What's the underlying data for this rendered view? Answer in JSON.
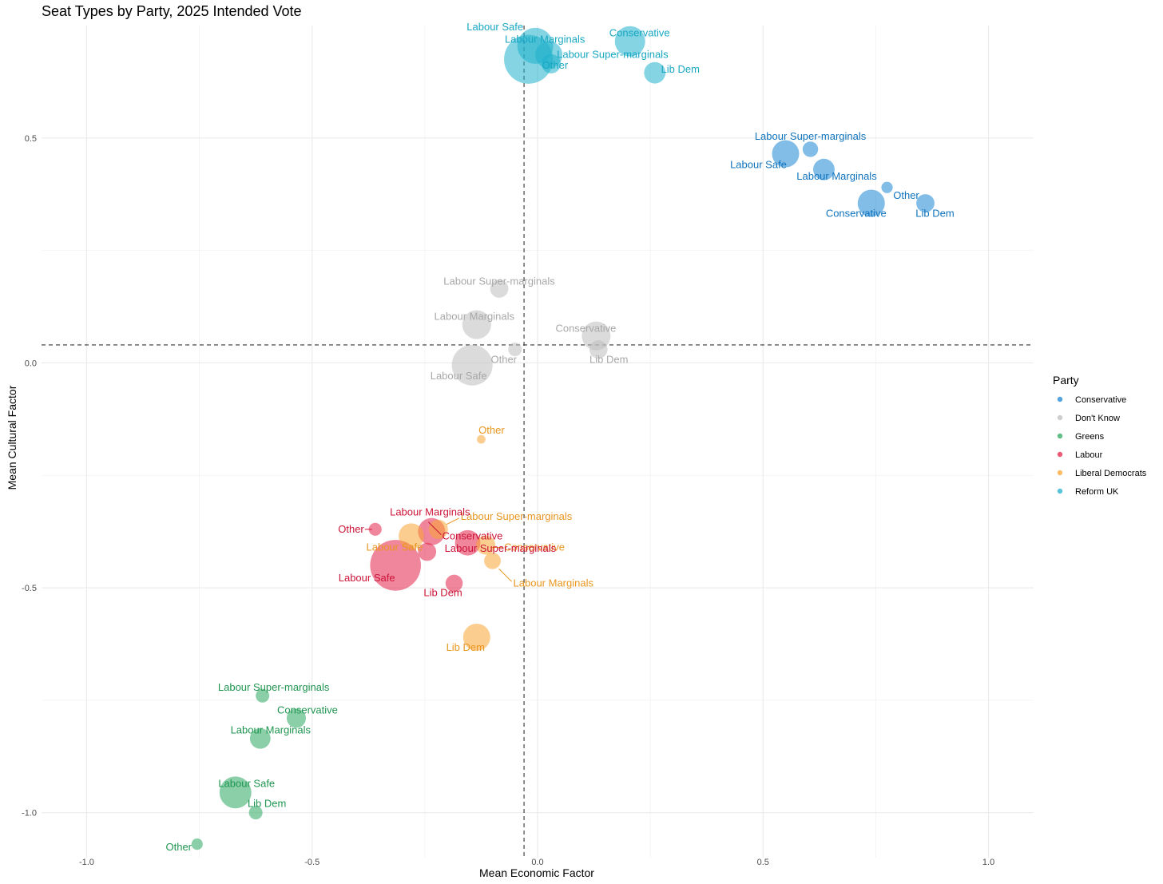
{
  "chart_data": {
    "type": "scatter",
    "title": "Seat Types by Party, 2025 Intended Vote",
    "xlabel": "Mean Economic Factor",
    "ylabel": "Mean Cultural Factor",
    "xlim": [
      -1.1,
      1.1
    ],
    "ylim": [
      -1.1,
      0.75
    ],
    "x_ticks": [
      -1.0,
      -0.5,
      0.0,
      0.5,
      1.0
    ],
    "x_tick_labels": [
      "-1.0",
      "-0.5",
      "0.0",
      "0.5",
      "1.0"
    ],
    "y_ticks": [
      -1.0,
      -0.5,
      0.0,
      0.5
    ],
    "y_tick_labels": [
      "-1.0",
      "-0.5",
      "0.0",
      "0.5"
    ],
    "reference_lines": {
      "x": -0.03,
      "y": 0.04
    },
    "grid": true,
    "legend": {
      "title": "Party",
      "position": "right",
      "entries": [
        {
          "name": "Conservative",
          "color": "#1c86d6"
        },
        {
          "name": "Don't Know",
          "color": "#bdbdbd"
        },
        {
          "name": "Greens",
          "color": "#2ca862"
        },
        {
          "name": "Labour",
          "color": "#e4234a"
        },
        {
          "name": "Liberal Democrats",
          "color": "#f8a534"
        },
        {
          "name": "Reform UK",
          "color": "#1fb0cc"
        }
      ]
    },
    "label_colors": {
      "Conservative": "#0f73bd",
      "Don't Know": "#a8a8a8",
      "Greens": "#1f9550",
      "Labour": "#cc1438",
      "Liberal Democrats": "#e8961f",
      "Reform UK": "#17a7c2"
    },
    "series": [
      {
        "name": "Reform UK",
        "points": [
          {
            "label": "Labour Safe",
            "x": -0.02,
            "y": 0.675,
            "size": 13
          },
          {
            "label": "Labour Marginals",
            "x": -0.005,
            "y": 0.705,
            "size": 7
          },
          {
            "label": "Labour Super-marginals",
            "x": 0.025,
            "y": 0.685,
            "size": 4
          },
          {
            "label": "Other",
            "x": 0.03,
            "y": 0.665,
            "size": 2
          },
          {
            "label": "Conservative",
            "x": 0.205,
            "y": 0.715,
            "size": 5
          },
          {
            "label": "Lib Dem",
            "x": 0.26,
            "y": 0.645,
            "size": 2.5
          }
        ]
      },
      {
        "name": "Conservative",
        "points": [
          {
            "label": "Labour Super-marginals",
            "x": 0.605,
            "y": 0.475,
            "size": 1.3
          },
          {
            "label": "Labour Safe",
            "x": 0.55,
            "y": 0.465,
            "size": 4
          },
          {
            "label": "Labour Marginals",
            "x": 0.635,
            "y": 0.43,
            "size": 2.5
          },
          {
            "label": "Other",
            "x": 0.775,
            "y": 0.39,
            "size": 0.7
          },
          {
            "label": "Conservative",
            "x": 0.74,
            "y": 0.355,
            "size": 4
          },
          {
            "label": "Lib Dem",
            "x": 0.86,
            "y": 0.355,
            "size": 1.8
          }
        ]
      },
      {
        "name": "Don't Know",
        "points": [
          {
            "label": "Labour Super-marginals",
            "x": -0.085,
            "y": 0.165,
            "size": 1.8
          },
          {
            "label": "Labour Marginals",
            "x": -0.135,
            "y": 0.085,
            "size": 4.5
          },
          {
            "label": "Conservative",
            "x": 0.13,
            "y": 0.06,
            "size": 4.5
          },
          {
            "label": "Lib Dem",
            "x": 0.135,
            "y": 0.03,
            "size": 1.8
          },
          {
            "label": "Other",
            "x": -0.05,
            "y": 0.03,
            "size": 1
          },
          {
            "label": "Labour Safe",
            "x": -0.145,
            "y": -0.005,
            "size": 9
          }
        ]
      },
      {
        "name": "Liberal Democrats",
        "points": [
          {
            "label": "Other",
            "x": -0.125,
            "y": -0.17,
            "size": 0.4
          },
          {
            "label": "Labour Safe",
            "x": -0.28,
            "y": -0.385,
            "size": 3.5
          },
          {
            "label": "Labour Super-marginals",
            "x": -0.22,
            "y": -0.37,
            "size": 2
          },
          {
            "label": "Conservative",
            "x": -0.115,
            "y": -0.405,
            "size": 2
          },
          {
            "label": "Labour Marginals",
            "x": -0.1,
            "y": -0.44,
            "size": 1.5
          },
          {
            "label": "Lib Dem",
            "x": -0.135,
            "y": -0.61,
            "size": 4
          }
        ]
      },
      {
        "name": "Labour",
        "points": [
          {
            "label": "Other",
            "x": -0.36,
            "y": -0.37,
            "size": 0.9
          },
          {
            "label": "Labour Marginals",
            "x": -0.235,
            "y": -0.375,
            "size": 4
          },
          {
            "label": "Conservative",
            "x": -0.155,
            "y": -0.4,
            "size": 3.5
          },
          {
            "label": "Labour Super-marginals",
            "x": -0.245,
            "y": -0.42,
            "size": 1.8
          },
          {
            "label": "Labour Safe",
            "x": -0.315,
            "y": -0.45,
            "size": 14
          },
          {
            "label": "Lib Dem",
            "x": -0.185,
            "y": -0.49,
            "size": 1.6
          }
        ]
      },
      {
        "name": "Greens",
        "points": [
          {
            "label": "Labour Super-marginals",
            "x": -0.61,
            "y": -0.74,
            "size": 1
          },
          {
            "label": "Conservative",
            "x": -0.535,
            "y": -0.79,
            "size": 2
          },
          {
            "label": "Labour Marginals",
            "x": -0.615,
            "y": -0.835,
            "size": 2.3
          },
          {
            "label": "Labour Safe",
            "x": -0.67,
            "y": -0.955,
            "size": 5.5
          },
          {
            "label": "Lib Dem",
            "x": -0.625,
            "y": -1.0,
            "size": 1
          },
          {
            "label": "Other",
            "x": -0.755,
            "y": -1.07,
            "size": 0.7
          }
        ]
      }
    ]
  }
}
